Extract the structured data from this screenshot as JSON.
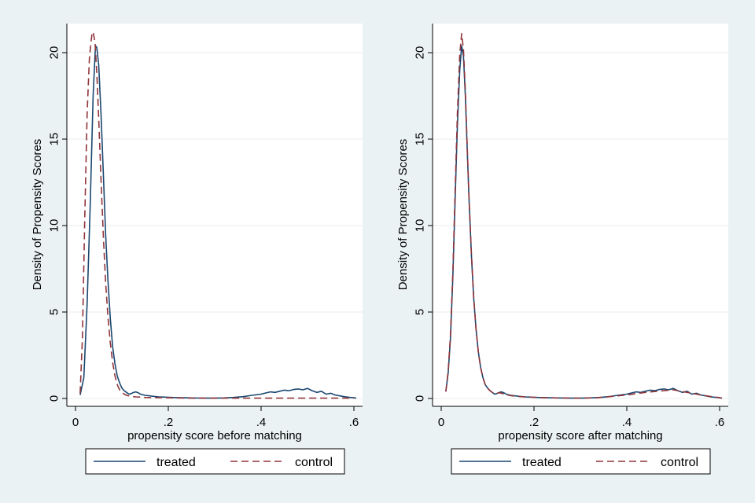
{
  "colors": {
    "background": "#eaf2f3",
    "plot_area": "#ffffff",
    "grid": "#e8eeee",
    "treated": "#1a476f",
    "control": "#90353b"
  },
  "chart_data": [
    {
      "type": "line",
      "title": "",
      "xlabel": "propensity score before matching",
      "ylabel": "Density of Propensity Scores",
      "xlim": [
        0,
        0.62
      ],
      "ylim": [
        0,
        21.5
      ],
      "x_ticks": [
        0,
        0.2,
        0.4,
        0.6
      ],
      "x_tick_labels": [
        "0",
        ".2",
        ".4",
        ".6"
      ],
      "y_ticks": [
        0,
        5,
        10,
        15,
        20
      ],
      "y_tick_labels": [
        "0",
        "5",
        "10",
        "15",
        "20"
      ],
      "grid": true,
      "legend_position": "bottom",
      "series": [
        {
          "name": "treated",
          "style": "solid",
          "points": [
            [
              0.01,
              0.2
            ],
            [
              0.018,
              1.2
            ],
            [
              0.025,
              5.5
            ],
            [
              0.032,
              11.5
            ],
            [
              0.038,
              17.5
            ],
            [
              0.043,
              20.4
            ],
            [
              0.046,
              20.3
            ],
            [
              0.05,
              19.3
            ],
            [
              0.055,
              16.5
            ],
            [
              0.06,
              13.0
            ],
            [
              0.065,
              9.5
            ],
            [
              0.07,
              6.8
            ],
            [
              0.075,
              4.6
            ],
            [
              0.08,
              3.0
            ],
            [
              0.085,
              2.0
            ],
            [
              0.09,
              1.3
            ],
            [
              0.095,
              0.9
            ],
            [
              0.1,
              0.6
            ],
            [
              0.105,
              0.45
            ],
            [
              0.11,
              0.35
            ],
            [
              0.115,
              0.25
            ],
            [
              0.12,
              0.28
            ],
            [
              0.125,
              0.35
            ],
            [
              0.13,
              0.38
            ],
            [
              0.135,
              0.33
            ],
            [
              0.14,
              0.25
            ],
            [
              0.15,
              0.18
            ],
            [
              0.16,
              0.15
            ],
            [
              0.17,
              0.12
            ],
            [
              0.18,
              0.09
            ],
            [
              0.19,
              0.08
            ],
            [
              0.2,
              0.07
            ],
            [
              0.22,
              0.05
            ],
            [
              0.25,
              0.03
            ],
            [
              0.28,
              0.02
            ],
            [
              0.3,
              0.02
            ],
            [
              0.32,
              0.03
            ],
            [
              0.34,
              0.06
            ],
            [
              0.36,
              0.1
            ],
            [
              0.38,
              0.18
            ],
            [
              0.4,
              0.25
            ],
            [
              0.41,
              0.32
            ],
            [
              0.42,
              0.38
            ],
            [
              0.43,
              0.35
            ],
            [
              0.44,
              0.42
            ],
            [
              0.45,
              0.48
            ],
            [
              0.46,
              0.45
            ],
            [
              0.47,
              0.52
            ],
            [
              0.48,
              0.55
            ],
            [
              0.49,
              0.5
            ],
            [
              0.5,
              0.58
            ],
            [
              0.51,
              0.45
            ],
            [
              0.52,
              0.35
            ],
            [
              0.53,
              0.42
            ],
            [
              0.54,
              0.25
            ],
            [
              0.55,
              0.3
            ],
            [
              0.56,
              0.2
            ],
            [
              0.57,
              0.15
            ],
            [
              0.58,
              0.1
            ],
            [
              0.59,
              0.07
            ],
            [
              0.6,
              0.04
            ],
            [
              0.605,
              0.02
            ]
          ]
        },
        {
          "name": "control",
          "style": "dashed",
          "points": [
            [
              0.01,
              0.3
            ],
            [
              0.015,
              3.5
            ],
            [
              0.02,
              10.5
            ],
            [
              0.025,
              16.5
            ],
            [
              0.03,
              19.7
            ],
            [
              0.035,
              21.0
            ],
            [
              0.038,
              21.2
            ],
            [
              0.042,
              20.6
            ],
            [
              0.046,
              18.8
            ],
            [
              0.05,
              16.2
            ],
            [
              0.055,
              12.7
            ],
            [
              0.06,
              9.4
            ],
            [
              0.065,
              6.7
            ],
            [
              0.07,
              4.7
            ],
            [
              0.075,
              3.2
            ],
            [
              0.08,
              2.1
            ],
            [
              0.085,
              1.3
            ],
            [
              0.09,
              0.8
            ],
            [
              0.095,
              0.5
            ],
            [
              0.1,
              0.33
            ],
            [
              0.11,
              0.18
            ],
            [
              0.12,
              0.12
            ],
            [
              0.13,
              0.09
            ],
            [
              0.14,
              0.08
            ],
            [
              0.15,
              0.06
            ],
            [
              0.17,
              0.05
            ],
            [
              0.2,
              0.04
            ],
            [
              0.25,
              0.02
            ],
            [
              0.3,
              0.02
            ],
            [
              0.35,
              0.02
            ],
            [
              0.4,
              0.02
            ],
            [
              0.45,
              0.02
            ],
            [
              0.5,
              0.02
            ],
            [
              0.55,
              0.02
            ],
            [
              0.6,
              0.02
            ]
          ]
        }
      ]
    },
    {
      "type": "line",
      "title": "",
      "xlabel": "propensity score after matching",
      "ylabel": "Density of Propensity Scores",
      "xlim": [
        0,
        0.62
      ],
      "ylim": [
        0,
        21.5
      ],
      "x_ticks": [
        0,
        0.2,
        0.4,
        0.6
      ],
      "x_tick_labels": [
        "0",
        ".2",
        ".4",
        ".6"
      ],
      "y_ticks": [
        0,
        5,
        10,
        15,
        20
      ],
      "y_tick_labels": [
        "0",
        "5",
        "10",
        "15",
        "20"
      ],
      "grid": true,
      "legend_position": "bottom",
      "series": [
        {
          "name": "treated",
          "style": "solid",
          "points": [
            [
              0.01,
              0.4
            ],
            [
              0.015,
              1.5
            ],
            [
              0.02,
              3.5
            ],
            [
              0.025,
              7.0
            ],
            [
              0.03,
              11.5
            ],
            [
              0.035,
              15.8
            ],
            [
              0.04,
              19.0
            ],
            [
              0.044,
              20.4
            ],
            [
              0.048,
              19.8
            ],
            [
              0.052,
              17.5
            ],
            [
              0.056,
              14.5
            ],
            [
              0.06,
              11.5
            ],
            [
              0.065,
              8.3
            ],
            [
              0.07,
              5.8
            ],
            [
              0.075,
              4.0
            ],
            [
              0.08,
              2.7
            ],
            [
              0.085,
              1.8
            ],
            [
              0.09,
              1.2
            ],
            [
              0.095,
              0.8
            ],
            [
              0.1,
              0.6
            ],
            [
              0.105,
              0.45
            ],
            [
              0.11,
              0.35
            ],
            [
              0.115,
              0.25
            ],
            [
              0.12,
              0.28
            ],
            [
              0.125,
              0.35
            ],
            [
              0.13,
              0.38
            ],
            [
              0.135,
              0.33
            ],
            [
              0.14,
              0.25
            ],
            [
              0.15,
              0.18
            ],
            [
              0.16,
              0.15
            ],
            [
              0.17,
              0.12
            ],
            [
              0.18,
              0.09
            ],
            [
              0.19,
              0.08
            ],
            [
              0.2,
              0.07
            ],
            [
              0.22,
              0.05
            ],
            [
              0.25,
              0.03
            ],
            [
              0.28,
              0.02
            ],
            [
              0.3,
              0.02
            ],
            [
              0.32,
              0.03
            ],
            [
              0.34,
              0.06
            ],
            [
              0.36,
              0.1
            ],
            [
              0.38,
              0.18
            ],
            [
              0.4,
              0.25
            ],
            [
              0.41,
              0.32
            ],
            [
              0.42,
              0.38
            ],
            [
              0.43,
              0.35
            ],
            [
              0.44,
              0.42
            ],
            [
              0.45,
              0.48
            ],
            [
              0.46,
              0.45
            ],
            [
              0.47,
              0.52
            ],
            [
              0.48,
              0.55
            ],
            [
              0.49,
              0.5
            ],
            [
              0.5,
              0.58
            ],
            [
              0.51,
              0.45
            ],
            [
              0.52,
              0.35
            ],
            [
              0.53,
              0.42
            ],
            [
              0.54,
              0.25
            ],
            [
              0.55,
              0.3
            ],
            [
              0.56,
              0.2
            ],
            [
              0.57,
              0.15
            ],
            [
              0.58,
              0.1
            ],
            [
              0.59,
              0.07
            ],
            [
              0.6,
              0.04
            ],
            [
              0.605,
              0.02
            ]
          ]
        },
        {
          "name": "control",
          "style": "dashed",
          "points": [
            [
              0.01,
              0.4
            ],
            [
              0.015,
              1.6
            ],
            [
              0.02,
              3.7
            ],
            [
              0.025,
              7.3
            ],
            [
              0.03,
              12.0
            ],
            [
              0.035,
              16.5
            ],
            [
              0.04,
              19.9
            ],
            [
              0.044,
              21.1
            ],
            [
              0.048,
              20.2
            ],
            [
              0.052,
              17.8
            ],
            [
              0.056,
              14.7
            ],
            [
              0.06,
              11.6
            ],
            [
              0.065,
              8.4
            ],
            [
              0.07,
              5.9
            ],
            [
              0.075,
              4.0
            ],
            [
              0.08,
              2.7
            ],
            [
              0.085,
              1.8
            ],
            [
              0.09,
              1.2
            ],
            [
              0.095,
              0.8
            ],
            [
              0.1,
              0.6
            ],
            [
              0.105,
              0.45
            ],
            [
              0.11,
              0.35
            ],
            [
              0.115,
              0.28
            ],
            [
              0.12,
              0.3
            ],
            [
              0.125,
              0.33
            ],
            [
              0.13,
              0.3
            ],
            [
              0.14,
              0.22
            ],
            [
              0.15,
              0.16
            ],
            [
              0.16,
              0.13
            ],
            [
              0.18,
              0.09
            ],
            [
              0.2,
              0.07
            ],
            [
              0.22,
              0.05
            ],
            [
              0.25,
              0.03
            ],
            [
              0.3,
              0.02
            ],
            [
              0.34,
              0.05
            ],
            [
              0.38,
              0.15
            ],
            [
              0.4,
              0.2
            ],
            [
              0.42,
              0.28
            ],
            [
              0.44,
              0.35
            ],
            [
              0.46,
              0.4
            ],
            [
              0.48,
              0.45
            ],
            [
              0.5,
              0.5
            ],
            [
              0.52,
              0.4
            ],
            [
              0.54,
              0.3
            ],
            [
              0.56,
              0.2
            ],
            [
              0.58,
              0.12
            ],
            [
              0.6,
              0.05
            ],
            [
              0.605,
              0.02
            ]
          ]
        }
      ]
    }
  ]
}
